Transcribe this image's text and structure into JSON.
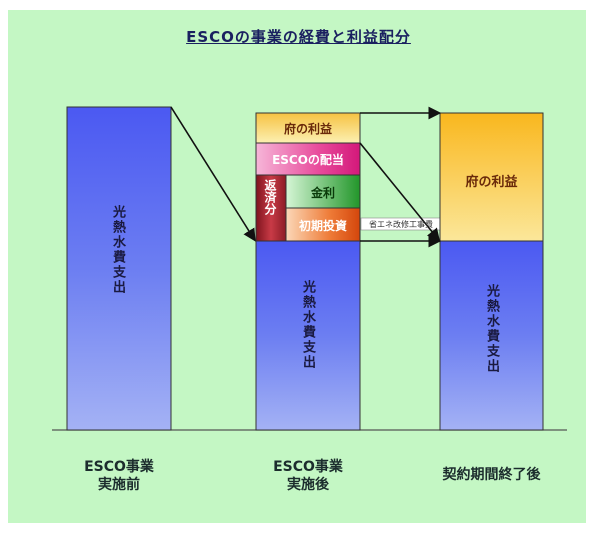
{
  "title": "ESCOの事業の経費と利益配分",
  "columns": {
    "before": {
      "bar_label": "光熱水費支出",
      "caption_line1": "ESCO事業",
      "caption_line2": "実施前"
    },
    "during": {
      "bar_label": "光熱水費支出",
      "caption_line1": "ESCO事業",
      "caption_line2": "実施後",
      "segments": {
        "city_profit": "府の利益",
        "esco_share": "ESCOの配当",
        "repayment": "返済分",
        "interest": "金利",
        "initial_investment": "初期投資",
        "small_note": "省エネ改修工事費"
      }
    },
    "after": {
      "bar_label": "光熱水費支出",
      "city_profit": "府の利益",
      "caption_line1": "契約期間終了後"
    }
  },
  "colors": {
    "background": "#c4f7c4",
    "blue_bar": "#5a6ef0",
    "profit_yellow": "#f7c63a",
    "esco_pink": "#e0368e",
    "repay_red": "#a8242e",
    "interest_green": "#3aa63a",
    "investment_orange": "#e05a10"
  }
}
